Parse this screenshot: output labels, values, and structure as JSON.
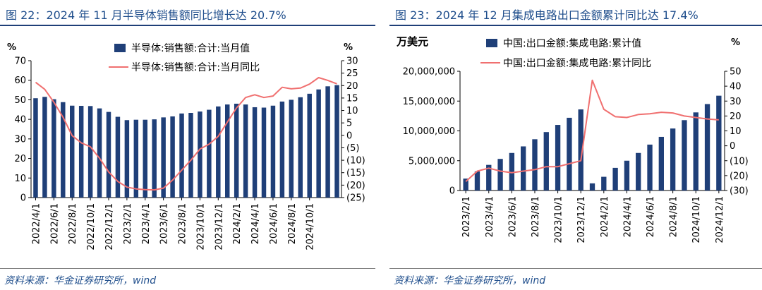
{
  "charts": [
    {
      "figure_title": "图 22：2024 年 11 月半导体销售额同比增长达 20.7%",
      "source": "资料来源：华金证券研究所，wind"
    },
    {
      "figure_title": "图 23：2024 年 12 月集成电路出口金额累计同比达 17.4%",
      "source": "资料来源：华金证券研究所，wind"
    }
  ],
  "chart_data": [
    {
      "type": "bar",
      "title": "",
      "left_axis_unit": "%",
      "right_axis_unit": "%",
      "x_tick_labels": [
        "2022/4/1",
        "2022/6/1",
        "2022/8/1",
        "2022/10/1",
        "2022/12/1",
        "2023/2/1",
        "2023/4/1",
        "2023/6/1",
        "2023/8/1",
        "2023/10/1",
        "2023/12/1",
        "2024/2/1",
        "2024/4/1",
        "2024/6/1",
        "2024/8/1",
        "2024/10/1"
      ],
      "left_axis": {
        "min": 0,
        "max": 70,
        "step": 10,
        "tick_labels": [
          "0",
          "10",
          "20",
          "30",
          "40",
          "50",
          "60",
          "70"
        ]
      },
      "right_axis": {
        "min": -25,
        "max": 30,
        "step": 5,
        "tick_labels": [
          "(25)",
          "(20)",
          "(15)",
          "(10)",
          "(5)",
          "0",
          "5",
          "10",
          "15",
          "20",
          "25",
          "30"
        ]
      },
      "legend_position": "top",
      "series": [
        {
          "name": "半导体:销售额:合计:当月值",
          "kind": "bar",
          "axis": "left",
          "color": "#1f3f78",
          "values": [
            50.8,
            51.5,
            50.3,
            48.8,
            47.0,
            46.9,
            46.8,
            45.6,
            43.8,
            41.3,
            39.6,
            39.8,
            39.8,
            40.0,
            41.0,
            41.5,
            43.0,
            43.3,
            44.0,
            44.9,
            46.6,
            47.6,
            48.0,
            47.6,
            46.2,
            46.0,
            47.0,
            49.1,
            50.0,
            51.3,
            53.1,
            55.3,
            56.9,
            57.5
          ]
        },
        {
          "name": "半导体:销售额:合计:当月同比",
          "kind": "line",
          "axis": "right",
          "color": "#f07070",
          "values": [
            21.3,
            18.5,
            13.3,
            7.3,
            -0.1,
            -3.0,
            -4.6,
            -9.2,
            -14.7,
            -18.5,
            -20.8,
            -21.5,
            -21.8,
            -21.9,
            -21.2,
            -18.0,
            -14.0,
            -10.0,
            -5.5,
            -3.5,
            -0.4,
            5.3,
            11.0,
            15.2,
            16.3,
            15.2,
            15.8,
            19.3,
            18.7,
            19.0,
            20.6,
            23.2,
            22.1,
            20.7
          ]
        }
      ]
    },
    {
      "type": "bar",
      "title": "",
      "left_axis_unit": "万美元",
      "right_axis_unit": "%",
      "x_tick_labels": [
        "2023/2/1",
        "2023/4/1",
        "2023/6/1",
        "2023/8/1",
        "2023/10/1",
        "2023/12/1",
        "2024/2/1",
        "2024/4/1",
        "2024/6/1",
        "2024/8/1",
        "2024/10/1",
        "2024/12/1"
      ],
      "left_axis": {
        "min": 0,
        "max": 20000000,
        "step": 5000000,
        "tick_labels": [
          "0",
          "5,000,000",
          "10,000,000",
          "15,000,000",
          "20,000,000"
        ]
      },
      "right_axis": {
        "min": -30,
        "max": 50,
        "step": 10,
        "tick_labels": [
          "(30)",
          "(20)",
          "(10)",
          "0",
          "10",
          "20",
          "30",
          "40",
          "50"
        ]
      },
      "legend_position": "top",
      "series": [
        {
          "name": "中国:出口金额:集成电路:累计值",
          "kind": "bar",
          "axis": "left",
          "color": "#1f3f78",
          "values": [
            2000000,
            3200000,
            4300000,
            5300000,
            6300000,
            7400000,
            8600000,
            9800000,
            11000000,
            12200000,
            13600000,
            1200000,
            2300000,
            3800000,
            5000000,
            6300000,
            7700000,
            9000000,
            10400000,
            11800000,
            13100000,
            14500000,
            15900000
          ]
        },
        {
          "name": "中国:出口金额:集成电路:累计同比",
          "kind": "line",
          "axis": "right",
          "color": "#f07070",
          "values": [
            -24.0,
            -17.0,
            -15.0,
            -17.0,
            -18.0,
            -17.0,
            -16.0,
            -14.0,
            -14.0,
            -12.0,
            -10.0,
            44.0,
            24.5,
            19.5,
            19.0,
            21.0,
            21.5,
            22.5,
            22.0,
            20.0,
            19.0,
            18.0,
            17.4
          ]
        }
      ]
    }
  ]
}
